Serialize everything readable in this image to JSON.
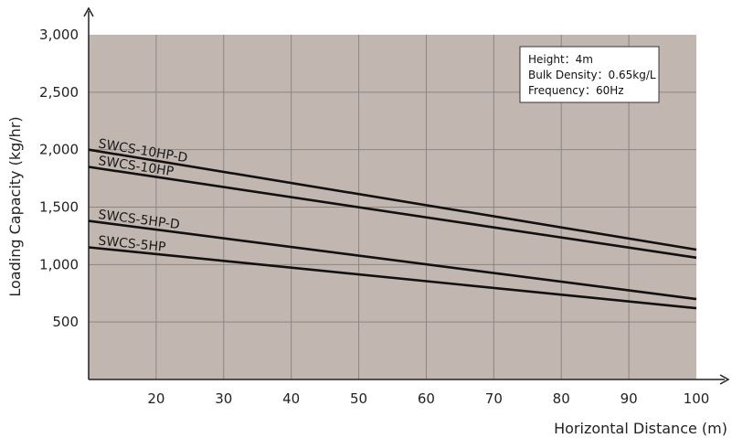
{
  "chart_data": {
    "type": "line",
    "xlabel": "Horizontal Distance (m)",
    "ylabel": "Loading Capacity (kg/hr)",
    "xlim": [
      10,
      100
    ],
    "ylim": [
      0,
      3000
    ],
    "x_ticks": [
      "20",
      "30",
      "40",
      "50",
      "60",
      "70",
      "80",
      "90",
      "100"
    ],
    "y_ticks": [
      "500",
      "1,000",
      "1,500",
      "2,000",
      "2,500",
      "3,000"
    ],
    "grid": true,
    "plot_background": "#c1b6b0",
    "grid_color": "#8c8682",
    "series": [
      {
        "name": "SWCS-10HP-D",
        "x": [
          10,
          100
        ],
        "y": [
          2000,
          1130
        ]
      },
      {
        "name": "SWCS-10HP",
        "x": [
          10,
          100
        ],
        "y": [
          1850,
          1060
        ]
      },
      {
        "name": "SWCS-5HP-D",
        "x": [
          10,
          100
        ],
        "y": [
          1380,
          700
        ]
      },
      {
        "name": "SWCS-5HP",
        "x": [
          10,
          100
        ],
        "y": [
          1150,
          620
        ]
      }
    ],
    "info_box": [
      "Height：4m",
      "Bulk Density：0.65kg/L",
      "Frequency：60Hz"
    ]
  }
}
